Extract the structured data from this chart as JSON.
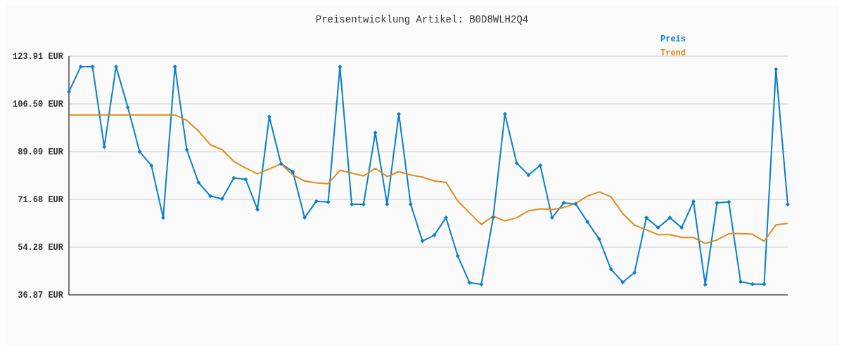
{
  "chart_data": {
    "type": "line",
    "title": "Preisentwicklung Artikel: B0D8WLH2Q4",
    "categories": [
      null,
      null,
      null,
      null,
      null,
      null,
      null,
      null,
      null,
      null,
      null,
      null,
      null,
      null,
      null,
      null,
      null,
      null,
      null,
      null,
      null,
      null,
      null,
      null,
      null,
      null,
      null,
      null,
      null,
      null,
      null,
      null,
      null,
      null,
      null,
      null,
      null,
      null,
      null,
      null,
      null,
      null,
      null,
      null,
      null,
      null,
      null,
      null,
      null,
      null,
      null,
      null,
      null,
      null,
      null,
      null,
      null,
      null,
      null,
      null,
      null,
      null
    ],
    "series": [
      {
        "name": "Preis",
        "color": "#0a7fcc",
        "marker": "diamond",
        "values": [
          110.9,
          120.1,
          120.1,
          90.8,
          120.1,
          105.2,
          89.1,
          84.0,
          65.0,
          120.1,
          89.8,
          77.8,
          72.9,
          71.9,
          79.5,
          79.0,
          68.0,
          101.8,
          84.7,
          81.8,
          65.0,
          71.0,
          70.7,
          120.1,
          69.9,
          69.9,
          96.0,
          69.9,
          102.8,
          69.9,
          56.5,
          58.6,
          65.0,
          51.0,
          41.3,
          40.7,
          65.0,
          102.8,
          84.9,
          80.6,
          84.1,
          65.0,
          70.4,
          70.0,
          63.5,
          57.2,
          46.2,
          41.5,
          45.0,
          65.0,
          61.4,
          65.0,
          61.4,
          70.9,
          40.6,
          70.4,
          70.7,
          41.7,
          40.8,
          40.8,
          119.1,
          69.8
        ]
      },
      {
        "name": "Trend",
        "color": "#e08a1a",
        "marker": "none",
        "values": [
          102.5,
          102.5,
          102.5,
          102.5,
          102.5,
          102.5,
          102.5,
          102.5,
          102.5,
          102.5,
          100.5,
          96.6,
          91.6,
          89.8,
          85.5,
          83.1,
          81.0,
          82.8,
          84.6,
          80.6,
          78.4,
          77.7,
          77.4,
          82.3,
          81.3,
          80.2,
          83.0,
          80.0,
          81.8,
          80.6,
          79.8,
          78.4,
          77.9,
          71.1,
          66.8,
          62.5,
          65.6,
          63.8,
          65.0,
          67.5,
          68.2,
          68.0,
          68.7,
          70.2,
          72.9,
          74.4,
          72.6,
          66.5,
          62.3,
          60.6,
          58.8,
          58.8,
          57.8,
          57.8,
          55.6,
          56.9,
          59.2,
          59.2,
          59.0,
          56.4,
          62.4,
          62.9
        ]
      }
    ],
    "ylim": [
      36.87,
      123.91
    ],
    "yticks": [
      {
        "value": 36.87,
        "label": "36.87 EUR"
      },
      {
        "value": 54.28,
        "label": "54.28 EUR"
      },
      {
        "value": 71.68,
        "label": "71.68 EUR"
      },
      {
        "value": 89.09,
        "label": "89.09 EUR"
      },
      {
        "value": 106.5,
        "label": "106.50 EUR"
      },
      {
        "value": 123.91,
        "label": "123.91 EUR"
      }
    ],
    "grid": "y",
    "legend": "top right",
    "line_style": "solid"
  }
}
